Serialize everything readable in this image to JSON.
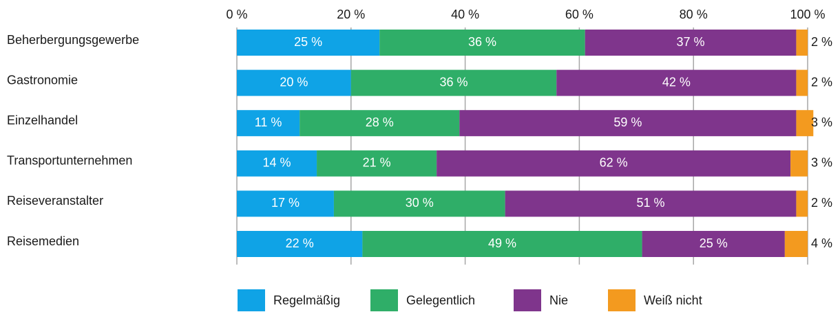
{
  "chart_data": {
    "type": "stacked-barh",
    "categories": [
      "Beherbergungsgewerbe",
      "Gastronomie",
      "Einzelhandel",
      "Transportunternehmen",
      "Reiseveranstalter",
      "Reisemedien"
    ],
    "series": [
      {
        "name": "Regelmäßig",
        "color": "#0fa3e6",
        "values": [
          25,
          20,
          11,
          14,
          17,
          22
        ],
        "value_labels": [
          "25 %",
          "20 %",
          "11 %",
          "14 %",
          "17 %",
          "22 %"
        ]
      },
      {
        "name": "Gelegentlich",
        "color": "#2fae68",
        "values": [
          36,
          36,
          28,
          21,
          30,
          49
        ],
        "value_labels": [
          "36 %",
          "36 %",
          "28 %",
          "21 %",
          "30 %",
          "49 %"
        ]
      },
      {
        "name": "Nie",
        "color": "#7f358c",
        "values": [
          37,
          42,
          59,
          62,
          51,
          25
        ],
        "value_labels": [
          "37 %",
          "42 %",
          "59 %",
          "62 %",
          "51 %",
          "25 %"
        ]
      },
      {
        "name": "Weiß nicht",
        "color": "#f39a1f",
        "values": [
          2,
          2,
          3,
          3,
          2,
          4
        ],
        "value_labels": [
          "2 %",
          "2 %",
          "3 %",
          "3 %",
          "2 %",
          "4 %"
        ]
      }
    ],
    "xlim": [
      0,
      100
    ],
    "xticks": [
      {
        "value": 0,
        "label": "0 %"
      },
      {
        "value": 20,
        "label": "20 %"
      },
      {
        "value": 40,
        "label": "40 %"
      },
      {
        "value": 60,
        "label": "60 %"
      },
      {
        "value": 80,
        "label": "80 %"
      },
      {
        "value": 100,
        "label": "100 %"
      }
    ],
    "grid": true,
    "legend": "bottom"
  }
}
